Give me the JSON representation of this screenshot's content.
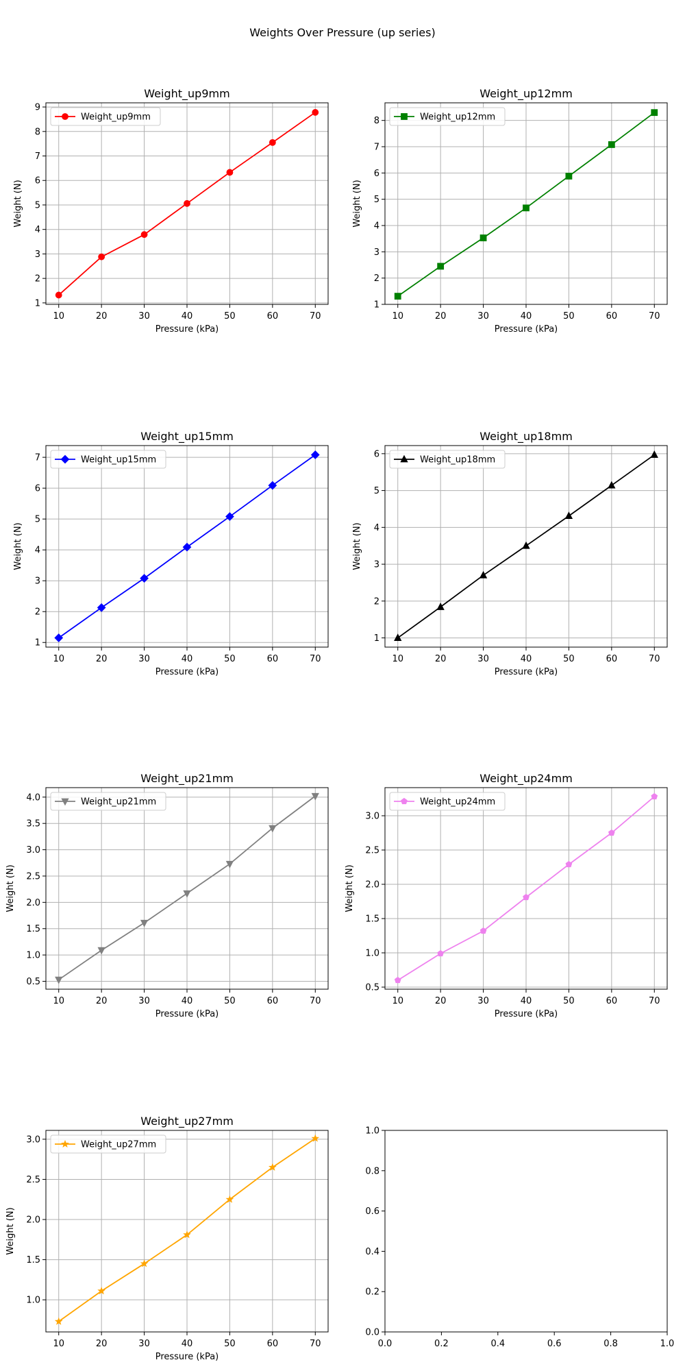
{
  "figure": {
    "suptitle": "Weights Over Pressure (up series)"
  },
  "chart_data": [
    {
      "type": "line",
      "title": "Weight_up9mm",
      "xlabel": "Pressure (kPa)",
      "ylabel": "Weight (N)",
      "x": [
        10,
        20,
        30,
        40,
        50,
        60,
        70
      ],
      "xticks": [
        10,
        20,
        30,
        40,
        50,
        60,
        70
      ],
      "xlim": [
        7,
        73
      ],
      "ylim": [
        0.94,
        9.17
      ],
      "yticks": [
        1,
        2,
        3,
        4,
        5,
        6,
        7,
        8,
        9
      ],
      "grid": true,
      "legend": "upper-left",
      "series": [
        {
          "name": "Weight_up9mm",
          "color": "#ff0000",
          "marker": "circle",
          "values": [
            1.32,
            2.88,
            3.79,
            5.06,
            6.33,
            7.55,
            8.78
          ]
        }
      ]
    },
    {
      "type": "line",
      "title": "Weight_up12mm",
      "xlabel": "Pressure (kPa)",
      "ylabel": "Weight (N)",
      "x": [
        10,
        20,
        30,
        40,
        50,
        60,
        70
      ],
      "xticks": [
        10,
        20,
        30,
        40,
        50,
        60,
        70
      ],
      "xlim": [
        7,
        73
      ],
      "ylim": [
        1.0,
        8.67
      ],
      "yticks": [
        1,
        2,
        3,
        4,
        5,
        6,
        7,
        8
      ],
      "grid": true,
      "legend": "upper-left",
      "series": [
        {
          "name": "Weight_up12mm",
          "color": "#008000",
          "marker": "square",
          "values": [
            1.31,
            2.45,
            3.53,
            4.67,
            5.88,
            7.08,
            8.3
          ]
        }
      ]
    },
    {
      "type": "line",
      "title": "Weight_up15mm",
      "xlabel": "Pressure (kPa)",
      "ylabel": "Weight (N)",
      "x": [
        10,
        20,
        30,
        40,
        50,
        60,
        70
      ],
      "xticks": [
        10,
        20,
        30,
        40,
        50,
        60,
        70
      ],
      "xlim": [
        7,
        73
      ],
      "ylim": [
        0.85,
        7.38
      ],
      "yticks": [
        1,
        2,
        3,
        4,
        5,
        6,
        7
      ],
      "grid": true,
      "legend": "upper-left",
      "series": [
        {
          "name": "Weight_up15mm",
          "color": "#0000ff",
          "marker": "diamond",
          "values": [
            1.15,
            2.13,
            3.08,
            4.09,
            5.08,
            6.09,
            7.08
          ]
        }
      ]
    },
    {
      "type": "line",
      "title": "Weight_up18mm",
      "xlabel": "Pressure (kPa)",
      "ylabel": "Weight (N)",
      "x": [
        10,
        20,
        30,
        40,
        50,
        60,
        70
      ],
      "xticks": [
        10,
        20,
        30,
        40,
        50,
        60,
        70
      ],
      "xlim": [
        7,
        73
      ],
      "ylim": [
        0.75,
        6.22
      ],
      "yticks": [
        1,
        2,
        3,
        4,
        5,
        6
      ],
      "grid": true,
      "legend": "upper-left",
      "series": [
        {
          "name": "Weight_up18mm",
          "color": "#000000",
          "marker": "triangle-up",
          "values": [
            1.0,
            1.84,
            2.7,
            3.5,
            4.31,
            5.14,
            5.97
          ]
        }
      ]
    },
    {
      "type": "line",
      "title": "Weight_up21mm",
      "xlabel": "Pressure (kPa)",
      "ylabel": "Weight (N)",
      "x": [
        10,
        20,
        30,
        40,
        50,
        60,
        70
      ],
      "xticks": [
        10,
        20,
        30,
        40,
        50,
        60,
        70
      ],
      "xlim": [
        7,
        73
      ],
      "ylim": [
        0.35,
        4.18
      ],
      "yticks": [
        0.5,
        1.0,
        1.5,
        2.0,
        2.5,
        3.0,
        3.5,
        4.0
      ],
      "ytick_format": "1dp",
      "grid": true,
      "legend": "upper-left",
      "series": [
        {
          "name": "Weight_up21mm",
          "color": "#808080",
          "marker": "triangle-down",
          "values": [
            0.53,
            1.09,
            1.61,
            2.17,
            2.73,
            3.41,
            4.02
          ]
        }
      ]
    },
    {
      "type": "line",
      "title": "Weight_up24mm",
      "xlabel": "Pressure (kPa)",
      "ylabel": "Weight (N)",
      "x": [
        10,
        20,
        30,
        40,
        50,
        60,
        70
      ],
      "xticks": [
        10,
        20,
        30,
        40,
        50,
        60,
        70
      ],
      "xlim": [
        7,
        73
      ],
      "ylim": [
        0.47,
        3.41
      ],
      "yticks": [
        0.5,
        1.0,
        1.5,
        2.0,
        2.5,
        3.0
      ],
      "ytick_format": "1dp",
      "grid": true,
      "legend": "upper-left",
      "series": [
        {
          "name": "Weight_up24mm",
          "color": "#ee82ee",
          "marker": "pentagon",
          "values": [
            0.6,
            0.99,
            1.32,
            1.81,
            2.29,
            2.75,
            3.28
          ]
        }
      ]
    },
    {
      "type": "line",
      "title": "Weight_up27mm",
      "xlabel": "Pressure (kPa)",
      "ylabel": "Weight (N)",
      "x": [
        10,
        20,
        30,
        40,
        50,
        60,
        70
      ],
      "xticks": [
        10,
        20,
        30,
        40,
        50,
        60,
        70
      ],
      "xlim": [
        7,
        73
      ],
      "ylim": [
        0.6,
        3.11
      ],
      "yticks": [
        1.0,
        1.5,
        2.0,
        2.5,
        3.0
      ],
      "ytick_format": "1dp",
      "grid": true,
      "legend": "upper-left",
      "series": [
        {
          "name": "Weight_up27mm",
          "color": "#ffa500",
          "marker": "star",
          "values": [
            0.73,
            1.11,
            1.45,
            1.81,
            2.25,
            2.65,
            3.01
          ]
        }
      ]
    },
    {
      "type": "line",
      "title": "",
      "xlabel": "",
      "ylabel": "",
      "x": [],
      "xticks": [
        0.0,
        0.2,
        0.4,
        0.6,
        0.8,
        1.0
      ],
      "xtick_format": "1dp",
      "xlim": [
        0,
        1
      ],
      "ylim": [
        0,
        1
      ],
      "yticks": [
        0.0,
        0.2,
        0.4,
        0.6,
        0.8,
        1.0
      ],
      "ytick_format": "1dp",
      "grid": false,
      "legend": "",
      "series": []
    }
  ]
}
